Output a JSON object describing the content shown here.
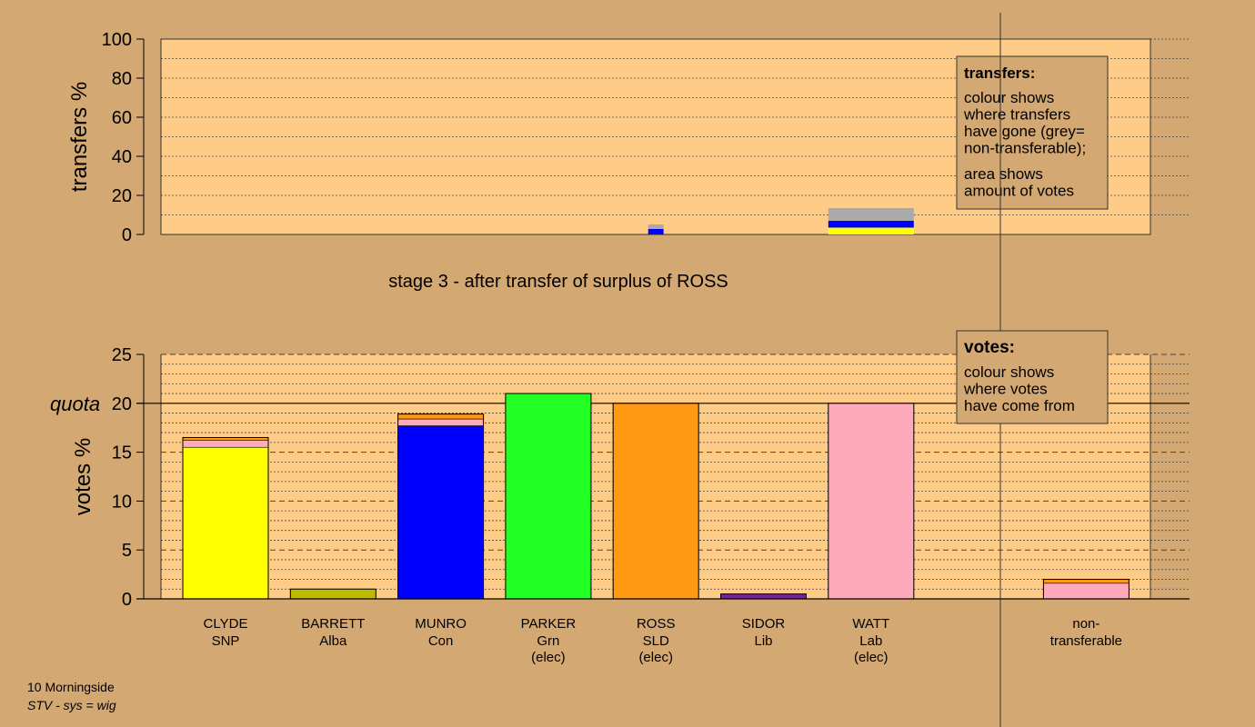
{
  "colors": {
    "background": "#d4a872",
    "plot_area": "#ffcc88",
    "legend_bg": "#d4a872",
    "grey": "#aaaaaa",
    "SNP": "#ffff00",
    "Alba": "#bbbb00",
    "Con": "#0000ff",
    "Grn": "#22ff22",
    "SLD": "#ff9911",
    "Lib": "#772299",
    "Lab": "#ffaabb"
  },
  "stage_title": "stage 3 - after transfer of surplus of ROSS",
  "footer": {
    "line1": "10 Morningside",
    "line2": "STV - sys = wig"
  },
  "chart_data": [
    {
      "type": "bar",
      "stacked": true,
      "ylabel": "transfers %",
      "ylim": [
        0,
        100
      ],
      "yticks": [
        0,
        20,
        40,
        60,
        80,
        100
      ],
      "grid": true,
      "legend": {
        "placement": "top-right",
        "title": "transfers:",
        "lines": [
          "colour shows",
          "where transfers",
          "have gone (grey=",
          "non-transferable);",
          "",
          "area shows",
          "amount of votes"
        ]
      },
      "bars": [
        {
          "slot": 4,
          "width_frac": 0.18,
          "segments": [
            {
              "party": "Con",
              "value": 2.8
            },
            {
              "party": "grey",
              "value": 2.3
            }
          ]
        },
        {
          "slot": 6,
          "width_frac": 1.0,
          "segments": [
            {
              "party": "SNP",
              "value": 3.5
            },
            {
              "party": "Con",
              "value": 3.5
            },
            {
              "party": "grey",
              "value": 6.5
            }
          ]
        }
      ]
    },
    {
      "type": "bar",
      "stacked": true,
      "ylabel": "votes %",
      "ylim": [
        0,
        25
      ],
      "yticks": [
        0,
        5,
        10,
        15,
        20,
        25
      ],
      "quota": {
        "label": "quota",
        "value": 20
      },
      "grid": true,
      "legend": {
        "placement": "top-right",
        "title": "votes:",
        "lines": [
          "colour shows",
          "where votes",
          "have come from"
        ]
      },
      "categories": [
        {
          "name": "CLYDE",
          "party": "SNP",
          "status": ""
        },
        {
          "name": "BARRETT",
          "party": "Alba",
          "status": ""
        },
        {
          "name": "MUNRO",
          "party": "Con",
          "status": ""
        },
        {
          "name": "PARKER",
          "party": "Grn",
          "status": "(elec)"
        },
        {
          "name": "ROSS",
          "party": "SLD",
          "status": "(elec)"
        },
        {
          "name": "SIDOR",
          "party": "Lib",
          "status": ""
        },
        {
          "name": "WATT",
          "party": "Lab",
          "status": "(elec)"
        },
        {
          "name": "non-",
          "party": "transferable",
          "status": ""
        }
      ],
      "bars": [
        {
          "slot": 0,
          "segments": [
            {
              "party": "SNP",
              "value": 15.5
            },
            {
              "party": "Lab",
              "value": 0.7
            },
            {
              "party": "SLD",
              "value": 0.3
            }
          ]
        },
        {
          "slot": 1,
          "segments": [
            {
              "party": "Alba",
              "value": 1.0
            }
          ]
        },
        {
          "slot": 2,
          "segments": [
            {
              "party": "Con",
              "value": 17.7
            },
            {
              "party": "Lab",
              "value": 0.7
            },
            {
              "party": "SLD",
              "value": 0.5
            }
          ]
        },
        {
          "slot": 3,
          "segments": [
            {
              "party": "Grn",
              "value": 21.0
            }
          ]
        },
        {
          "slot": 4,
          "segments": [
            {
              "party": "SLD",
              "value": 20.0
            }
          ]
        },
        {
          "slot": 5,
          "segments": [
            {
              "party": "Lib",
              "value": 0.5
            }
          ]
        },
        {
          "slot": 6,
          "segments": [
            {
              "party": "Lab",
              "value": 20.0
            }
          ]
        },
        {
          "slot": 8,
          "segments": [
            {
              "party": "Lab",
              "value": 1.6
            },
            {
              "party": "SLD",
              "value": 0.4
            }
          ]
        }
      ]
    }
  ]
}
